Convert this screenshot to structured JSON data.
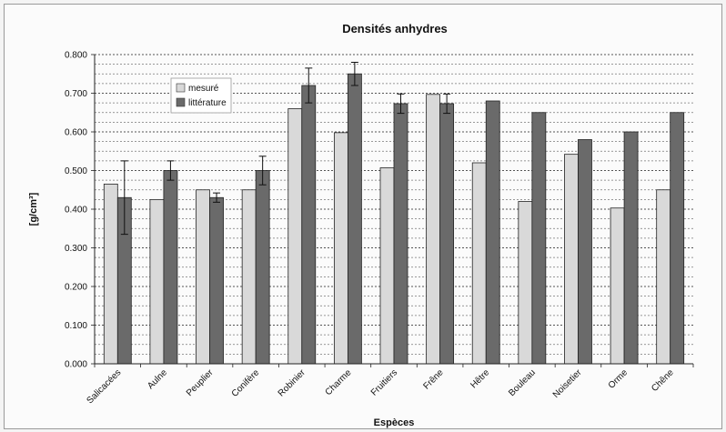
{
  "chart_data": {
    "type": "bar",
    "title": "Densités anhydres",
    "xlabel": "Espèces",
    "ylabel": "[g/cm³]",
    "ylim": [
      0,
      0.8
    ],
    "yticks": [
      "0.000",
      "0.100",
      "0.200",
      "0.300",
      "0.400",
      "0.500",
      "0.600",
      "0.700",
      "0.800"
    ],
    "grid": true,
    "legend_position": "top-left",
    "categories": [
      "Salicacées",
      "Aulne",
      "Peuplier",
      "Conifère",
      "Robinier",
      "Charme",
      "Fruitiers",
      "Frêne",
      "Hêtre",
      "Bouleau",
      "Noisetier",
      "Orme",
      "Chêne"
    ],
    "series": [
      {
        "name": "mesuré",
        "color": "#d9d9d9",
        "values": [
          0.465,
          0.425,
          0.45,
          0.45,
          0.66,
          0.598,
          0.507,
          0.697,
          0.52,
          0.42,
          0.542,
          0.403,
          0.45
        ]
      },
      {
        "name": "littérature",
        "color": "#6a6a6a",
        "values": [
          0.43,
          0.5,
          0.43,
          0.5,
          0.72,
          0.75,
          0.673,
          0.673,
          0.68,
          0.65,
          0.58,
          0.6,
          0.65
        ],
        "errors": [
          0.095,
          0.025,
          0.012,
          0.037,
          0.045,
          0.03,
          0.025,
          0.025,
          null,
          null,
          null,
          null,
          null
        ]
      }
    ]
  }
}
